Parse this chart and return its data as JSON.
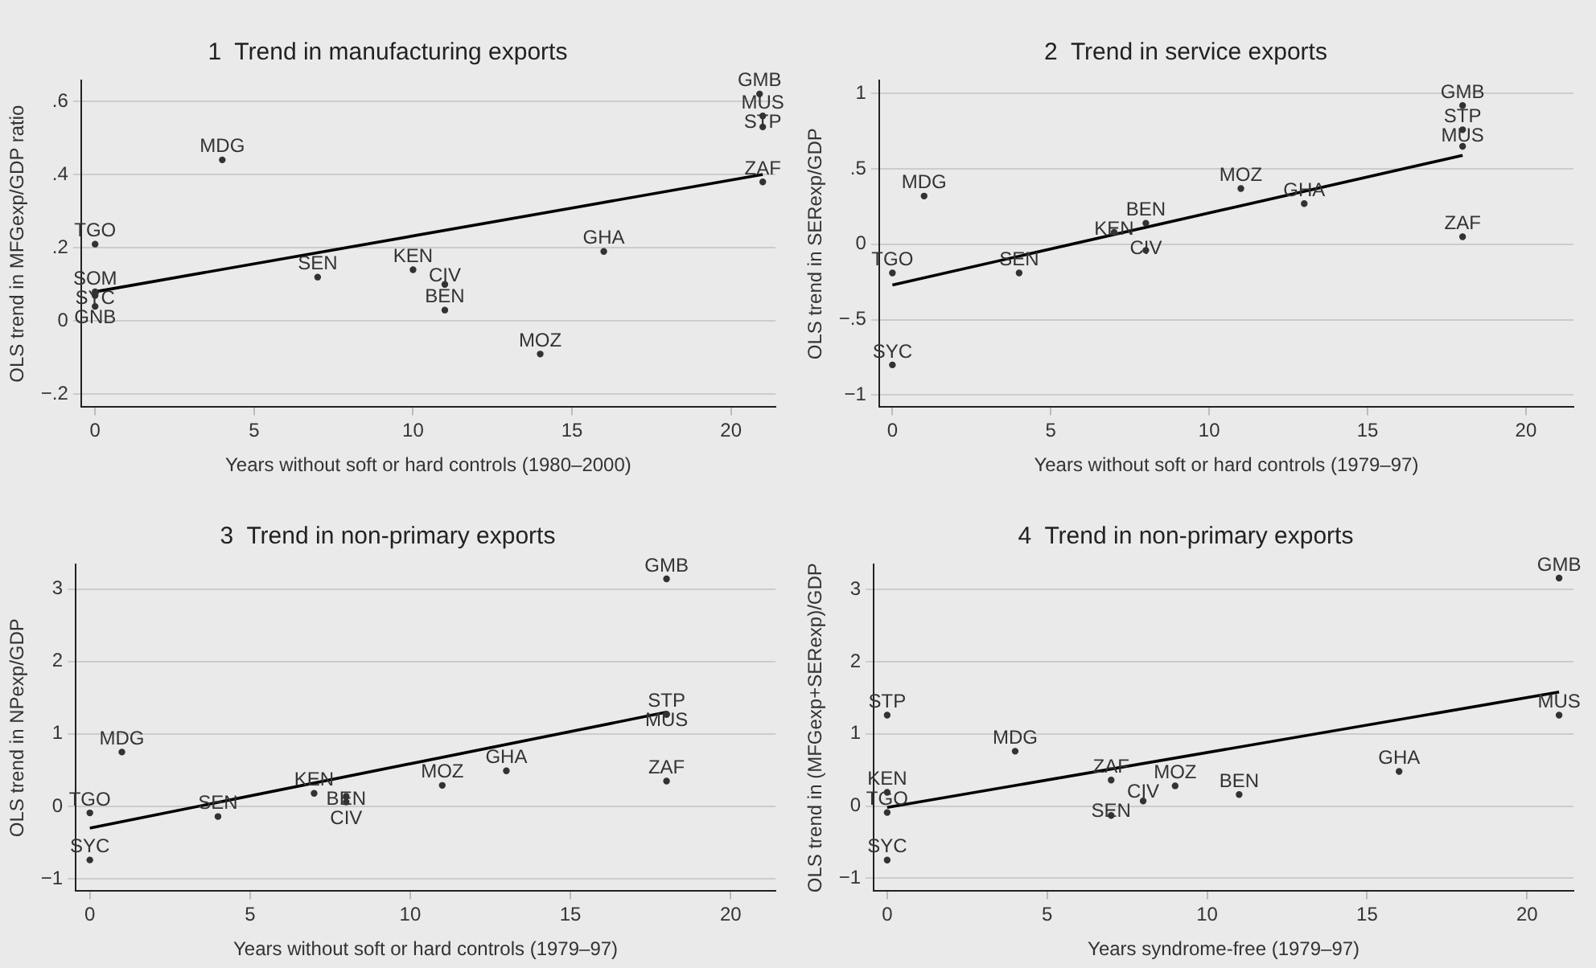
{
  "chart_data": [
    {
      "type": "scatter",
      "title": "1  Trend in manufacturing exports",
      "xlabel": "Years without soft or hard controls (1980–2000)",
      "ylabel": "OLS trend in MFGexp/GDP ratio",
      "xlim": [
        -0.44,
        21.4
      ],
      "xticks": [
        0,
        5,
        10,
        15,
        20
      ],
      "ylim": [
        -0.235,
        0.657
      ],
      "yticks": [
        {
          "value": -0.2,
          "label": "−.2"
        },
        0,
        {
          "value": 0.2,
          "label": ".2"
        },
        {
          "value": 0.4,
          "label": ".4"
        },
        {
          "value": 0.6,
          "label": ".6"
        }
      ],
      "grid": "y",
      "series": [
        {
          "color": "#333333",
          "marker": "circle",
          "x": [
            20.9,
            21,
            21,
            21,
            4,
            0,
            7,
            10,
            11,
            11,
            16,
            14,
            0,
            0,
            0
          ],
          "values": [
            0.62,
            0.56,
            0.53,
            0.38,
            0.44,
            0.21,
            0.12,
            0.14,
            0.1,
            0.03,
            0.19,
            -0.09,
            0.08,
            0.07,
            0.04
          ],
          "value_labels": [
            "GMB",
            "MUS",
            "STP",
            "ZAF",
            "MDG",
            "TGO",
            "SEN",
            "KEN",
            "CIV",
            "BEN",
            "GHA",
            "MOZ",
            "SOM",
            "SYC",
            "GNB"
          ]
        },
        {
          "type": "line",
          "marker": "none",
          "color": "#000000",
          "x": [
            0,
            21
          ],
          "values": [
            0.08,
            0.4
          ]
        }
      ]
    },
    {
      "type": "scatter",
      "title": "2  Trend in service exports",
      "xlabel": "Years without soft or hard controls (1979–97)",
      "ylabel": "OLS trend in SERexp/GDP",
      "xlim": [
        -0.42,
        21.5
      ],
      "xticks": [
        0,
        5,
        10,
        15,
        20
      ],
      "ylim": [
        -1.08,
        1.087
      ],
      "yticks": [
        {
          "value": -1,
          "label": "−1"
        },
        {
          "value": -0.5,
          "label": "−.5"
        },
        0,
        {
          "value": 0.5,
          "label": ".5"
        },
        1
      ],
      "grid": "y",
      "series": [
        {
          "color": "#333333",
          "marker": "circle",
          "x": [
            18,
            18,
            18,
            1,
            11,
            13,
            8,
            7,
            8,
            18,
            0,
            4,
            0
          ],
          "values": [
            0.92,
            0.76,
            0.65,
            0.32,
            0.37,
            0.27,
            0.14,
            0.08,
            -0.04,
            0.05,
            -0.19,
            -0.19,
            -0.8
          ],
          "value_labels": [
            "GMB",
            "STP",
            "MUS",
            "MDG",
            "MOZ",
            "GHA",
            "BEN",
            "KEN",
            "CIV",
            "ZAF",
            "TGO",
            "SEN",
            "SYC"
          ]
        },
        {
          "type": "line",
          "marker": "none",
          "color": "#000000",
          "x": [
            0,
            18
          ],
          "values": [
            -0.27,
            0.59
          ]
        }
      ]
    },
    {
      "type": "scatter",
      "title": "3  Trend in non-primary exports",
      "xlabel": "Years without soft or hard controls (1979–97)",
      "ylabel": "OLS trend in NPexp/GDP",
      "xlim": [
        -0.44,
        21.4
      ],
      "xticks": [
        0,
        5,
        10,
        15,
        20
      ],
      "ylim": [
        -1.17,
        3.34
      ],
      "yticks": [
        {
          "value": -1,
          "label": "−1"
        },
        0,
        1,
        2,
        3
      ],
      "grid": "y",
      "series": [
        {
          "color": "#333333",
          "marker": "circle",
          "x": [
            18,
            18,
            18,
            1,
            13,
            18,
            11,
            7,
            8,
            8,
            0,
            4,
            0
          ],
          "values": [
            3.14,
            1.27,
            1.27,
            0.75,
            0.49,
            0.35,
            0.29,
            0.18,
            0.14,
            0.06,
            -0.09,
            -0.14,
            -0.74
          ],
          "value_labels": [
            "GMB",
            "STP",
            "MUS",
            "MDG",
            "GHA",
            "ZAF",
            "MOZ",
            "KEN",
            "BEN",
            "CIV",
            "TGO",
            "SEN",
            "SYC"
          ]
        },
        {
          "type": "line",
          "marker": "none",
          "color": "#000000",
          "x": [
            0,
            18
          ],
          "values": [
            -0.3,
            1.3
          ]
        }
      ]
    },
    {
      "type": "scatter",
      "title": "4  Trend in non-primary exports",
      "xlabel": "Years syndrome-free (1979–97)",
      "ylabel": "OLS trend in (MFGexp+SERexp)/GDP",
      "xlim": [
        -0.42,
        21.45
      ],
      "xticks": [
        0,
        5,
        10,
        15,
        20
      ],
      "ylim": [
        -1.18,
        3.35
      ],
      "yticks": [
        {
          "value": -1,
          "label": "−1"
        },
        0,
        1,
        2,
        3
      ],
      "grid": "y",
      "series": [
        {
          "color": "#333333",
          "marker": "circle",
          "x": [
            21,
            21,
            0,
            4,
            16,
            7,
            9,
            11,
            0,
            8,
            0,
            7,
            0
          ],
          "values": [
            3.16,
            1.26,
            1.26,
            0.76,
            0.48,
            0.36,
            0.28,
            0.16,
            0.19,
            0.07,
            -0.09,
            -0.13,
            -0.75
          ],
          "value_labels": [
            "GMB",
            "MUS",
            "STP",
            "MDG",
            "GHA",
            "ZAF",
            "MOZ",
            "BEN",
            "KEN",
            "CIV",
            "TGO",
            "SEN",
            "SYC"
          ]
        },
        {
          "type": "line",
          "marker": "none",
          "color": "#000000",
          "x": [
            0,
            21
          ],
          "values": [
            -0.02,
            1.58
          ]
        }
      ]
    }
  ]
}
